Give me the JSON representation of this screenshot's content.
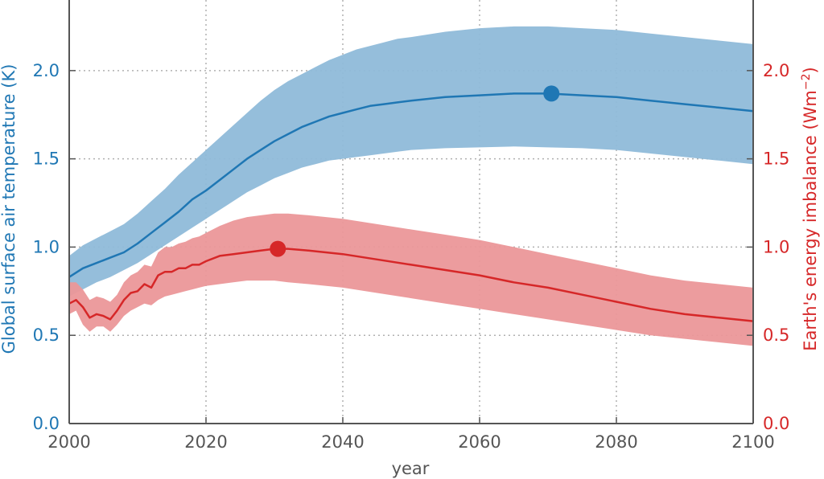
{
  "chart_data": {
    "type": "line",
    "xlabel": "year",
    "ylabel_left": "Global surface air temperature (K)",
    "ylabel_right": "Earth's energy imbalance (Wm",
    "ylabel_right_superscript": "−2",
    "ylabel_right_close": ")",
    "xlim": [
      2000,
      2100
    ],
    "ylim_left": [
      0.0,
      2.4
    ],
    "ylim_right": [
      0.0,
      2.4
    ],
    "x_ticks": [
      "2000",
      "2020",
      "2040",
      "2060",
      "2080",
      "2100"
    ],
    "x_tick_values": [
      2000,
      2020,
      2040,
      2060,
      2080,
      2100
    ],
    "y_ticks_left": [
      "0.0",
      "0.5",
      "1.0",
      "1.5",
      "2.0"
    ],
    "y_ticks_right": [
      "0.0",
      "0.5",
      "1.0",
      "1.5",
      "2.0"
    ],
    "y_tick_values": [
      0.0,
      0.5,
      1.0,
      1.5,
      2.0
    ],
    "grid": true,
    "colors": {
      "temperature": "#1f77b4",
      "temperature_band": "#8fbad9",
      "imbalance": "#d62728",
      "imbalance_band": "#eb9799",
      "axis": "#555555",
      "grid": "#b0b0b0"
    },
    "series": [
      {
        "key": "temperature",
        "axis": "left",
        "x": [
          2000,
          2002,
          2004,
          2006,
          2008,
          2010,
          2012,
          2014,
          2016,
          2018,
          2020,
          2022,
          2024,
          2026,
          2028,
          2030,
          2032,
          2034,
          2036,
          2038,
          2040,
          2042,
          2044,
          2046,
          2048,
          2050,
          2055,
          2060,
          2065,
          2070,
          2075,
          2080,
          2085,
          2090,
          2095,
          2100
        ],
        "values": [
          0.83,
          0.88,
          0.91,
          0.94,
          0.97,
          1.02,
          1.08,
          1.14,
          1.2,
          1.27,
          1.32,
          1.38,
          1.44,
          1.5,
          1.55,
          1.6,
          1.64,
          1.68,
          1.71,
          1.74,
          1.76,
          1.78,
          1.8,
          1.81,
          1.82,
          1.83,
          1.85,
          1.86,
          1.87,
          1.87,
          1.86,
          1.85,
          1.83,
          1.81,
          1.79,
          1.77
        ],
        "lower": [
          0.72,
          0.76,
          0.8,
          0.83,
          0.87,
          0.91,
          0.96,
          1.01,
          1.06,
          1.11,
          1.16,
          1.21,
          1.26,
          1.31,
          1.35,
          1.39,
          1.42,
          1.45,
          1.47,
          1.49,
          1.5,
          1.51,
          1.52,
          1.53,
          1.54,
          1.55,
          1.56,
          1.565,
          1.57,
          1.565,
          1.56,
          1.55,
          1.53,
          1.51,
          1.49,
          1.47
        ],
        "upper": [
          0.95,
          1.01,
          1.05,
          1.09,
          1.13,
          1.19,
          1.26,
          1.33,
          1.41,
          1.48,
          1.55,
          1.62,
          1.69,
          1.76,
          1.83,
          1.89,
          1.94,
          1.98,
          2.02,
          2.06,
          2.09,
          2.12,
          2.14,
          2.16,
          2.18,
          2.19,
          2.22,
          2.24,
          2.25,
          2.25,
          2.24,
          2.23,
          2.21,
          2.19,
          2.17,
          2.15
        ]
      },
      {
        "key": "imbalance",
        "axis": "right",
        "x": [
          2000,
          2001,
          2002,
          2003,
          2004,
          2005,
          2006,
          2007,
          2008,
          2009,
          2010,
          2011,
          2012,
          2013,
          2014,
          2015,
          2016,
          2017,
          2018,
          2019,
          2020,
          2022,
          2024,
          2026,
          2028,
          2030,
          2032,
          2035,
          2040,
          2045,
          2050,
          2055,
          2060,
          2065,
          2070,
          2075,
          2080,
          2085,
          2090,
          2095,
          2100
        ],
        "values": [
          0.68,
          0.7,
          0.66,
          0.6,
          0.62,
          0.61,
          0.59,
          0.64,
          0.7,
          0.74,
          0.75,
          0.79,
          0.77,
          0.84,
          0.86,
          0.86,
          0.88,
          0.88,
          0.9,
          0.9,
          0.92,
          0.95,
          0.96,
          0.97,
          0.98,
          0.99,
          0.99,
          0.98,
          0.96,
          0.93,
          0.9,
          0.87,
          0.84,
          0.8,
          0.77,
          0.73,
          0.69,
          0.65,
          0.62,
          0.6,
          0.58
        ],
        "lower": [
          0.62,
          0.64,
          0.56,
          0.52,
          0.55,
          0.55,
          0.52,
          0.56,
          0.61,
          0.64,
          0.66,
          0.68,
          0.67,
          0.7,
          0.72,
          0.73,
          0.74,
          0.75,
          0.76,
          0.77,
          0.78,
          0.79,
          0.8,
          0.81,
          0.81,
          0.81,
          0.8,
          0.79,
          0.77,
          0.74,
          0.71,
          0.68,
          0.65,
          0.62,
          0.59,
          0.56,
          0.53,
          0.5,
          0.48,
          0.46,
          0.44
        ],
        "upper": [
          0.8,
          0.8,
          0.76,
          0.7,
          0.72,
          0.71,
          0.69,
          0.73,
          0.8,
          0.84,
          0.86,
          0.9,
          0.89,
          0.97,
          1.0,
          1.0,
          1.02,
          1.03,
          1.05,
          1.06,
          1.08,
          1.12,
          1.15,
          1.17,
          1.18,
          1.19,
          1.19,
          1.18,
          1.16,
          1.13,
          1.1,
          1.07,
          1.04,
          1.0,
          0.96,
          0.92,
          0.88,
          0.84,
          0.81,
          0.79,
          0.77
        ]
      }
    ],
    "markers": [
      {
        "key": "temperature",
        "axis": "left",
        "x": 2070.5,
        "y": 1.87
      },
      {
        "key": "imbalance",
        "axis": "right",
        "x": 2030.5,
        "y": 0.99
      }
    ]
  }
}
